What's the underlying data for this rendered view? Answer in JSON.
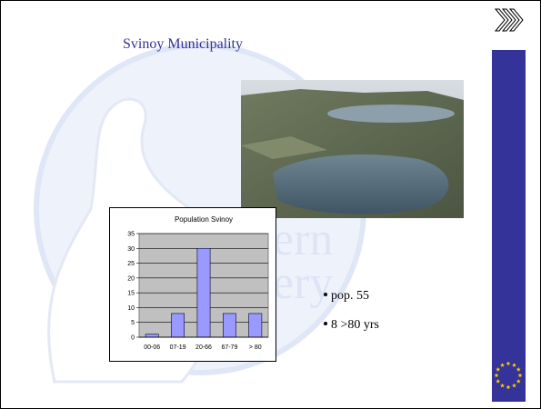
{
  "slide": {
    "title": "Svinoy Municipality",
    "watermark": [
      "ern",
      "ery"
    ],
    "bullets": [
      "pop. 55",
      "8 >80 yrs"
    ]
  },
  "chart_data": {
    "type": "bar",
    "title": "Population Svinoy",
    "categories": [
      "00-06",
      "07-19",
      "20-66",
      "67-79",
      "> 80"
    ],
    "values": [
      1,
      8,
      30,
      8,
      8
    ],
    "color": "#9999ff",
    "ylim": [
      0,
      35
    ],
    "yticks": [
      0,
      5,
      10,
      15,
      20,
      25,
      30,
      35
    ],
    "grid": true
  }
}
